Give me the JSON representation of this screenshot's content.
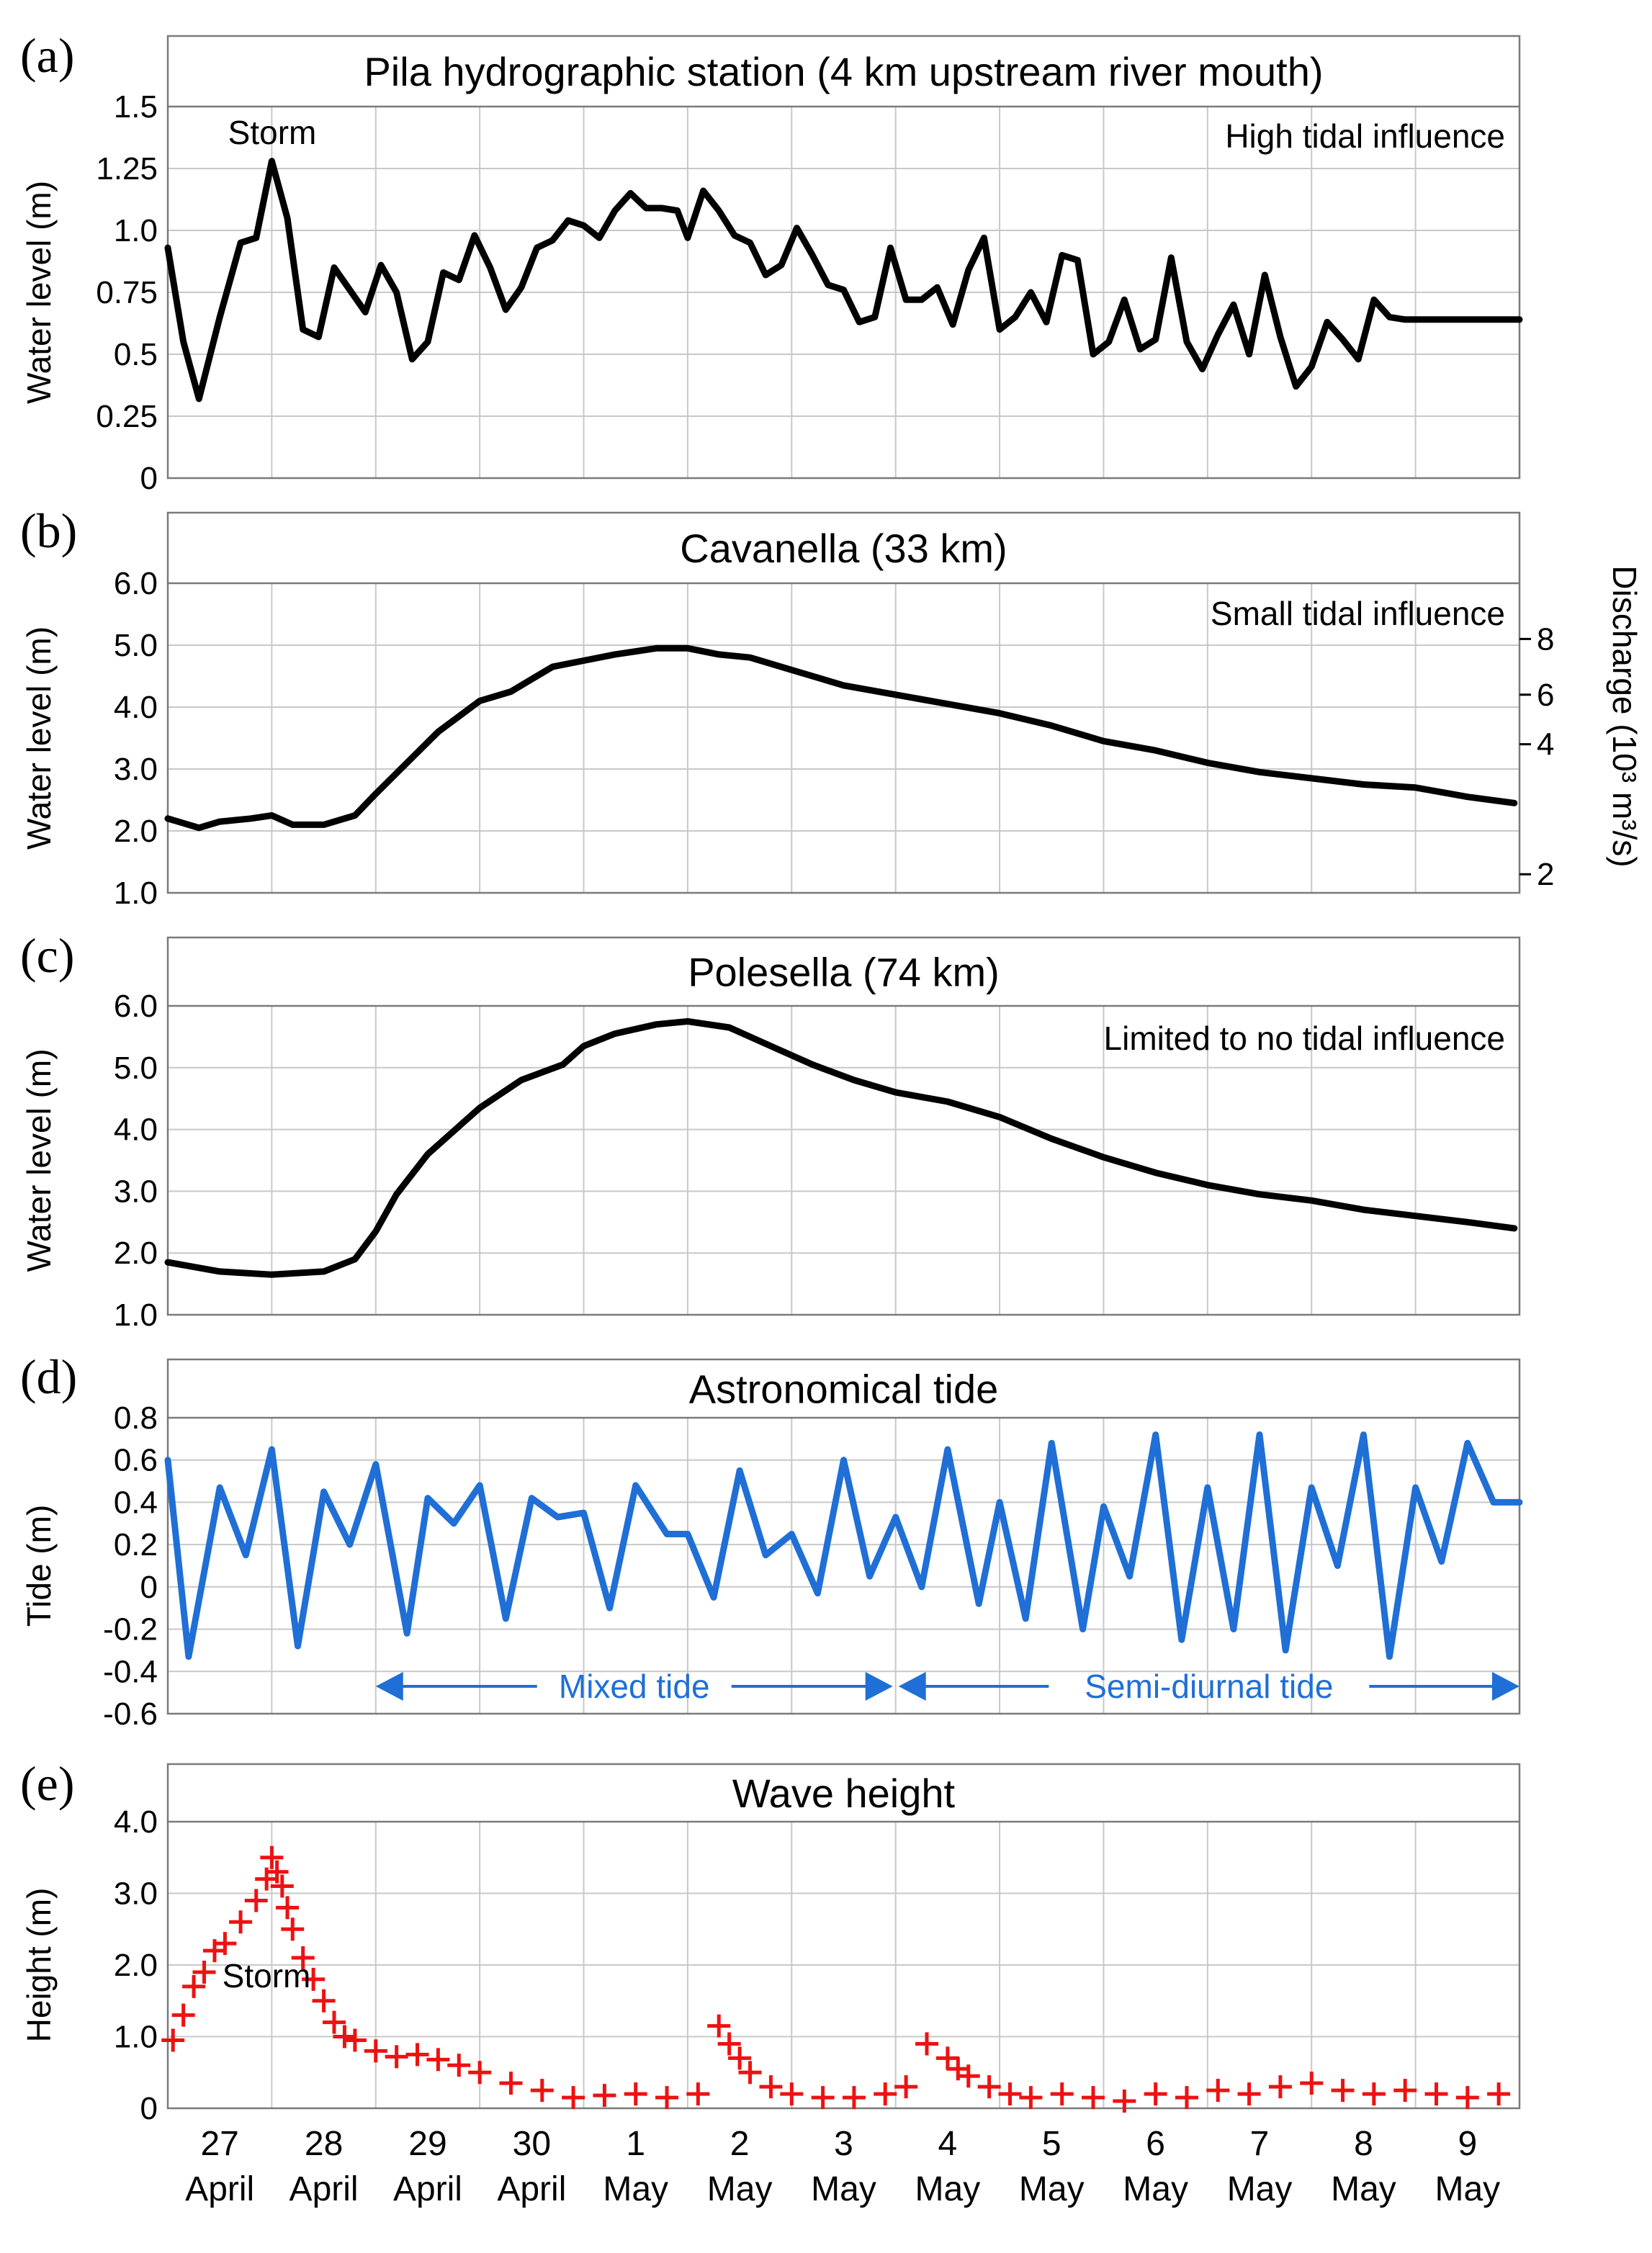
{
  "figure": {
    "colors": {
      "water": "#000000",
      "tide": "#1f6fd6",
      "wave": "#ee1111",
      "grid": "#c8c8c8",
      "frame": "#7a7a7a"
    },
    "x_day_labels": [
      {
        "day": "27",
        "month": "April"
      },
      {
        "day": "28",
        "month": "April"
      },
      {
        "day": "29",
        "month": "April"
      },
      {
        "day": "30",
        "month": "April"
      },
      {
        "day": "1",
        "month": "May"
      },
      {
        "day": "2",
        "month": "May"
      },
      {
        "day": "3",
        "month": "May"
      },
      {
        "day": "4",
        "month": "May"
      },
      {
        "day": "5",
        "month": "May"
      },
      {
        "day": "6",
        "month": "May"
      },
      {
        "day": "7",
        "month": "May"
      },
      {
        "day": "8",
        "month": "May"
      },
      {
        "day": "9",
        "month": "May"
      }
    ]
  },
  "chart_data": [
    {
      "panel": "(a)",
      "type": "line",
      "title": "Pila hydrographic station (4 km upstream river mouth)",
      "ylabel": "Water level (m)",
      "ylim": [
        0,
        1.5
      ],
      "yticks": [
        "0",
        "0.25",
        "0.5",
        "0.75",
        "1.0",
        "1.25",
        "1.5"
      ],
      "xlim": [
        0,
        13
      ],
      "annotations": [
        "Storm",
        "High tidal influence"
      ],
      "series": [
        {
          "name": "Water level",
          "x": [
            0,
            0.15,
            0.3,
            0.5,
            0.7,
            0.85,
            1.0,
            1.15,
            1.3,
            1.45,
            1.6,
            1.75,
            1.9,
            2.05,
            2.2,
            2.35,
            2.5,
            2.65,
            2.8,
            2.95,
            3.1,
            3.25,
            3.4,
            3.55,
            3.7,
            3.85,
            4.0,
            4.15,
            4.3,
            4.45,
            4.6,
            4.75,
            4.9,
            5.0,
            5.15,
            5.3,
            5.45,
            5.6,
            5.75,
            5.9,
            6.05,
            6.2,
            6.35,
            6.5,
            6.65,
            6.8,
            6.95,
            7.1,
            7.25,
            7.4,
            7.55,
            7.7,
            7.85,
            8.0,
            8.15,
            8.3,
            8.45,
            8.6,
            8.75,
            8.9,
            9.05,
            9.2,
            9.35,
            9.5,
            9.65,
            9.8,
            9.95,
            10.1,
            10.25,
            10.4,
            10.55,
            10.7,
            10.85,
            11.0,
            11.15,
            11.3,
            11.45,
            11.6,
            11.75,
            11.9,
            12.05,
            12.2,
            12.35,
            12.5,
            12.65,
            12.8,
            12.95,
            13.0
          ],
          "y": [
            0.93,
            0.55,
            0.32,
            0.65,
            0.95,
            0.97,
            1.28,
            1.05,
            0.6,
            0.57,
            0.85,
            0.76,
            0.67,
            0.86,
            0.75,
            0.48,
            0.55,
            0.83,
            0.8,
            0.98,
            0.85,
            0.68,
            0.77,
            0.93,
            0.96,
            1.04,
            1.02,
            0.97,
            1.08,
            1.15,
            1.09,
            1.09,
            1.08,
            0.97,
            1.16,
            1.08,
            0.98,
            0.95,
            0.82,
            0.86,
            1.01,
            0.9,
            0.78,
            0.76,
            0.63,
            0.65,
            0.93,
            0.72,
            0.72,
            0.77,
            0.62,
            0.84,
            0.97,
            0.6,
            0.65,
            0.75,
            0.63,
            0.9,
            0.88,
            0.5,
            0.55,
            0.72,
            0.52,
            0.56,
            0.89,
            0.55,
            0.44,
            0.58,
            0.7,
            0.5,
            0.82,
            0.57,
            0.37,
            0.45,
            0.63,
            0.56,
            0.48,
            0.72,
            0.65,
            0.64,
            0.64,
            0.64,
            0.64,
            0.64,
            0.64,
            0.64,
            0.64,
            0.64
          ]
        }
      ]
    },
    {
      "panel": "(b)",
      "type": "line",
      "title": "Cavanella (33 km)",
      "ylabel": "Water level (m)",
      "ylim": [
        1.0,
        6.0
      ],
      "yticks": [
        "1.0",
        "2.0",
        "3.0",
        "4.0",
        "5.0",
        "6.0"
      ],
      "xlim": [
        0,
        13
      ],
      "annotations": [
        "Small tidal influence"
      ],
      "secondary_axis": {
        "label": "Discharge (10³ m³/s)",
        "ticks": [
          {
            "label": "2",
            "at_water_level": 1.3
          },
          {
            "label": "4",
            "at_water_level": 3.4
          },
          {
            "label": "6",
            "at_water_level": 4.2
          },
          {
            "label": "8",
            "at_water_level": 5.1
          }
        ]
      },
      "series": [
        {
          "name": "Water level",
          "x": [
            0,
            0.3,
            0.5,
            0.8,
            1.0,
            1.2,
            1.5,
            1.8,
            2.0,
            2.3,
            2.6,
            3.0,
            3.3,
            3.5,
            3.7,
            4.0,
            4.3,
            4.7,
            5.0,
            5.3,
            5.6,
            6.0,
            6.5,
            7.0,
            7.5,
            8.0,
            8.5,
            9.0,
            9.5,
            10.0,
            10.5,
            11.0,
            11.5,
            12.0,
            12.5,
            12.95
          ],
          "y": [
            2.2,
            2.05,
            2.15,
            2.2,
            2.25,
            2.1,
            2.1,
            2.25,
            2.6,
            3.1,
            3.6,
            4.1,
            4.25,
            4.45,
            4.65,
            4.75,
            4.85,
            4.95,
            4.95,
            4.85,
            4.8,
            4.6,
            4.35,
            4.2,
            4.05,
            3.9,
            3.7,
            3.45,
            3.3,
            3.1,
            2.95,
            2.85,
            2.75,
            2.7,
            2.55,
            2.45
          ]
        }
      ]
    },
    {
      "panel": "(c)",
      "type": "line",
      "title": "Polesella (74 km)",
      "ylabel": "Water level (m)",
      "ylim": [
        1.0,
        6.0
      ],
      "yticks": [
        "1.0",
        "2.0",
        "3.0",
        "4.0",
        "5.0",
        "6.0"
      ],
      "xlim": [
        0,
        13
      ],
      "annotations": [
        "Limited to no tidal influence"
      ],
      "series": [
        {
          "name": "Water level",
          "x": [
            0,
            0.5,
            1.0,
            1.5,
            1.8,
            2.0,
            2.2,
            2.5,
            2.8,
            3.0,
            3.4,
            3.8,
            4.0,
            4.3,
            4.7,
            5.0,
            5.4,
            5.8,
            6.2,
            6.6,
            7.0,
            7.5,
            8.0,
            8.5,
            9.0,
            9.5,
            10.0,
            10.5,
            11.0,
            11.5,
            12.0,
            12.5,
            12.95
          ],
          "y": [
            1.85,
            1.7,
            1.65,
            1.7,
            1.9,
            2.35,
            2.95,
            3.6,
            4.05,
            4.35,
            4.8,
            5.05,
            5.35,
            5.55,
            5.7,
            5.75,
            5.65,
            5.35,
            5.05,
            4.8,
            4.6,
            4.45,
            4.2,
            3.85,
            3.55,
            3.3,
            3.1,
            2.95,
            2.85,
            2.7,
            2.6,
            2.5,
            2.4
          ]
        }
      ]
    },
    {
      "panel": "(d)",
      "type": "line",
      "title": "Astronomical tide",
      "ylabel": "Tide (m)",
      "ylim": [
        -0.6,
        0.8
      ],
      "yticks": [
        "-0.6",
        "-0.4",
        "-0.2",
        "0",
        "0.2",
        "0.4",
        "0.6",
        "0.8"
      ],
      "xlim": [
        0,
        13
      ],
      "annotations": [
        "Mixed tide",
        "Semi-diurnal tide"
      ],
      "regions": [
        {
          "label": "Mixed tide",
          "x": [
            2,
            7
          ]
        },
        {
          "label": "Semi-diurnal tide",
          "x": [
            7,
            13
          ]
        }
      ],
      "series": [
        {
          "name": "Tide",
          "x": [
            0,
            0.2,
            0.5,
            0.75,
            1.0,
            1.25,
            1.5,
            1.75,
            2.0,
            2.3,
            2.5,
            2.75,
            3.0,
            3.25,
            3.5,
            3.75,
            4.0,
            4.25,
            4.5,
            4.8,
            5.0,
            5.25,
            5.5,
            5.75,
            6.0,
            6.25,
            6.5,
            6.75,
            7.0,
            7.25,
            7.5,
            7.8,
            8.0,
            8.25,
            8.5,
            8.8,
            9.0,
            9.25,
            9.5,
            9.75,
            10.0,
            10.25,
            10.5,
            10.75,
            11.0,
            11.25,
            11.5,
            11.75,
            12.0,
            12.25,
            12.5,
            12.75,
            13.0
          ],
          "y": [
            0.6,
            -0.33,
            0.47,
            0.15,
            0.65,
            -0.28,
            0.45,
            0.2,
            0.58,
            -0.22,
            0.42,
            0.3,
            0.48,
            -0.15,
            0.42,
            0.33,
            0.35,
            -0.1,
            0.48,
            0.25,
            0.25,
            -0.05,
            0.55,
            0.15,
            0.25,
            -0.03,
            0.6,
            0.05,
            0.33,
            0.0,
            0.65,
            -0.08,
            0.4,
            -0.15,
            0.68,
            -0.2,
            0.38,
            0.05,
            0.72,
            -0.25,
            0.47,
            -0.2,
            0.72,
            -0.3,
            0.47,
            0.1,
            0.72,
            -0.33,
            0.47,
            0.12,
            0.68,
            0.4,
            0.4
          ]
        }
      ]
    },
    {
      "panel": "(e)",
      "type": "scatter",
      "title": "Wave height",
      "ylabel": "Height (m)",
      "ylim": [
        0,
        4.0
      ],
      "yticks": [
        "0",
        "1.0",
        "2.0",
        "3.0",
        "4.0"
      ],
      "xlim": [
        0,
        13
      ],
      "annotations": [
        "Storm"
      ],
      "series": [
        {
          "name": "Wave height",
          "marker": "+",
          "x": [
            0.05,
            0.15,
            0.25,
            0.35,
            0.45,
            0.55,
            0.7,
            0.85,
            0.95,
            1.0,
            1.05,
            1.1,
            1.15,
            1.2,
            1.3,
            1.4,
            1.5,
            1.6,
            1.7,
            1.8,
            2.0,
            2.2,
            2.4,
            2.6,
            2.8,
            3.0,
            3.3,
            3.6,
            3.9,
            4.2,
            4.5,
            4.8,
            5.1,
            5.3,
            5.4,
            5.5,
            5.6,
            5.8,
            6.0,
            6.3,
            6.6,
            6.9,
            7.1,
            7.3,
            7.5,
            7.6,
            7.7,
            7.9,
            8.1,
            8.3,
            8.6,
            8.9,
            9.2,
            9.5,
            9.8,
            10.1,
            10.4,
            10.7,
            11.0,
            11.3,
            11.6,
            11.9,
            12.2,
            12.5,
            12.8
          ],
          "y": [
            0.95,
            1.3,
            1.7,
            1.9,
            2.2,
            2.3,
            2.6,
            2.9,
            3.2,
            3.5,
            3.3,
            3.1,
            2.8,
            2.5,
            2.1,
            1.8,
            1.5,
            1.2,
            1.0,
            0.95,
            0.8,
            0.72,
            0.75,
            0.68,
            0.6,
            0.5,
            0.35,
            0.25,
            0.15,
            0.18,
            0.2,
            0.15,
            0.2,
            1.15,
            0.9,
            0.7,
            0.5,
            0.3,
            0.2,
            0.15,
            0.15,
            0.2,
            0.3,
            0.9,
            0.7,
            0.55,
            0.45,
            0.3,
            0.2,
            0.15,
            0.2,
            0.15,
            0.1,
            0.2,
            0.15,
            0.25,
            0.2,
            0.3,
            0.35,
            0.25,
            0.2,
            0.25,
            0.2,
            0.15,
            0.2
          ]
        }
      ]
    }
  ]
}
